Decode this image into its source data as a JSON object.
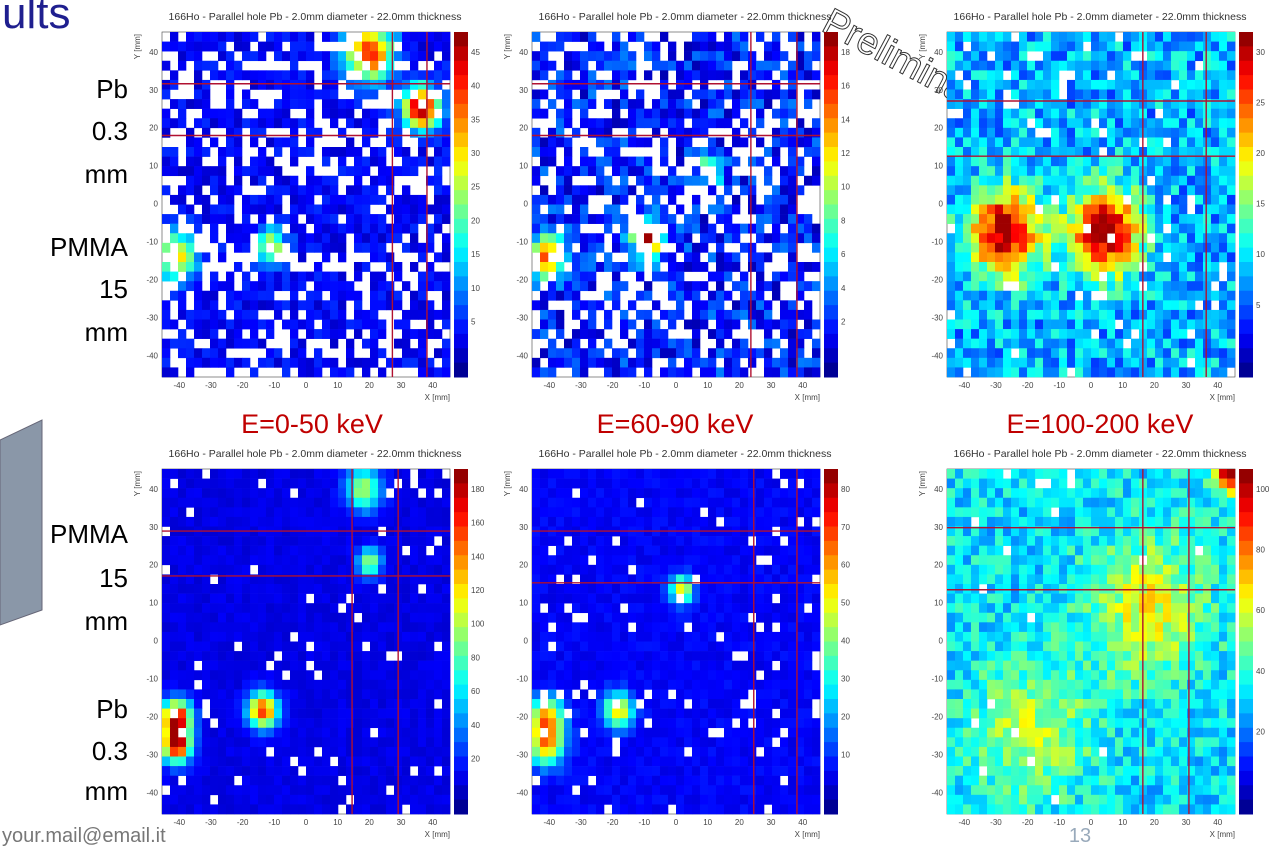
{
  "title_fragment": "ults",
  "watermark": "Preliminary",
  "row_labels": [
    [
      "Pb",
      "0.3",
      "mm",
      "PMMA",
      "15",
      "mm"
    ],
    [
      "PMMA",
      "15",
      "mm",
      "Pb",
      "0.3",
      "mm"
    ]
  ],
  "energy_labels": [
    "E=0-50 keV",
    "E=60-90 keV",
    "E=100-200 keV"
  ],
  "axis_ticks": [
    "-40",
    "-30",
    "-20",
    "-10",
    "0",
    "10",
    "20",
    "30",
    "40"
  ],
  "panels": [
    {
      "title": "166Ho - Parallel hole Pb - 2.0mm diameter - 22.0mm thickness",
      "x_label": "X [mm]",
      "y_label": "Y [mm]",
      "colorbar_ticks": [
        "45",
        "40",
        "35",
        "30",
        "25",
        "20",
        "15",
        "10",
        "5"
      ]
    },
    {
      "title": "166Ho - Parallel hole Pb - 2.0mm diameter - 22.0mm thickness",
      "x_label": "X [mm]",
      "y_label": "Y [mm]",
      "colorbar_ticks": [
        "18",
        "16",
        "14",
        "12",
        "10",
        "8",
        "6",
        "4",
        "2"
      ]
    },
    {
      "title": "166Ho - Parallel hole Pb - 2.0mm diameter - 22.0mm thickness",
      "x_label": "X [mm]",
      "y_label": "Y [mm]",
      "colorbar_ticks": [
        "30",
        "25",
        "20",
        "15",
        "10",
        "5"
      ]
    },
    {
      "title": "166Ho - Parallel hole Pb - 2.0mm diameter - 22.0mm thickness",
      "x_label": "X [mm]",
      "y_label": "Y [mm]",
      "colorbar_ticks": [
        "180",
        "160",
        "140",
        "120",
        "100",
        "80",
        "60",
        "40",
        "20"
      ]
    },
    {
      "title": "166Ho - Parallel hole Pb - 2.0mm diameter - 22.0mm thickness",
      "x_label": "X [mm]",
      "y_label": "Y [mm]",
      "colorbar_ticks": [
        "80",
        "70",
        "60",
        "50",
        "40",
        "30",
        "20",
        "10"
      ]
    },
    {
      "title": "166Ho - Parallel hole Pb - 2.0mm diameter - 22.0mm thickness",
      "x_label": "X [mm]",
      "y_label": "Y [mm]",
      "colorbar_ticks": [
        "100",
        "80",
        "60",
        "40",
        "20"
      ]
    }
  ],
  "footer_email": "your.mail@email.it",
  "page_number": "13"
}
